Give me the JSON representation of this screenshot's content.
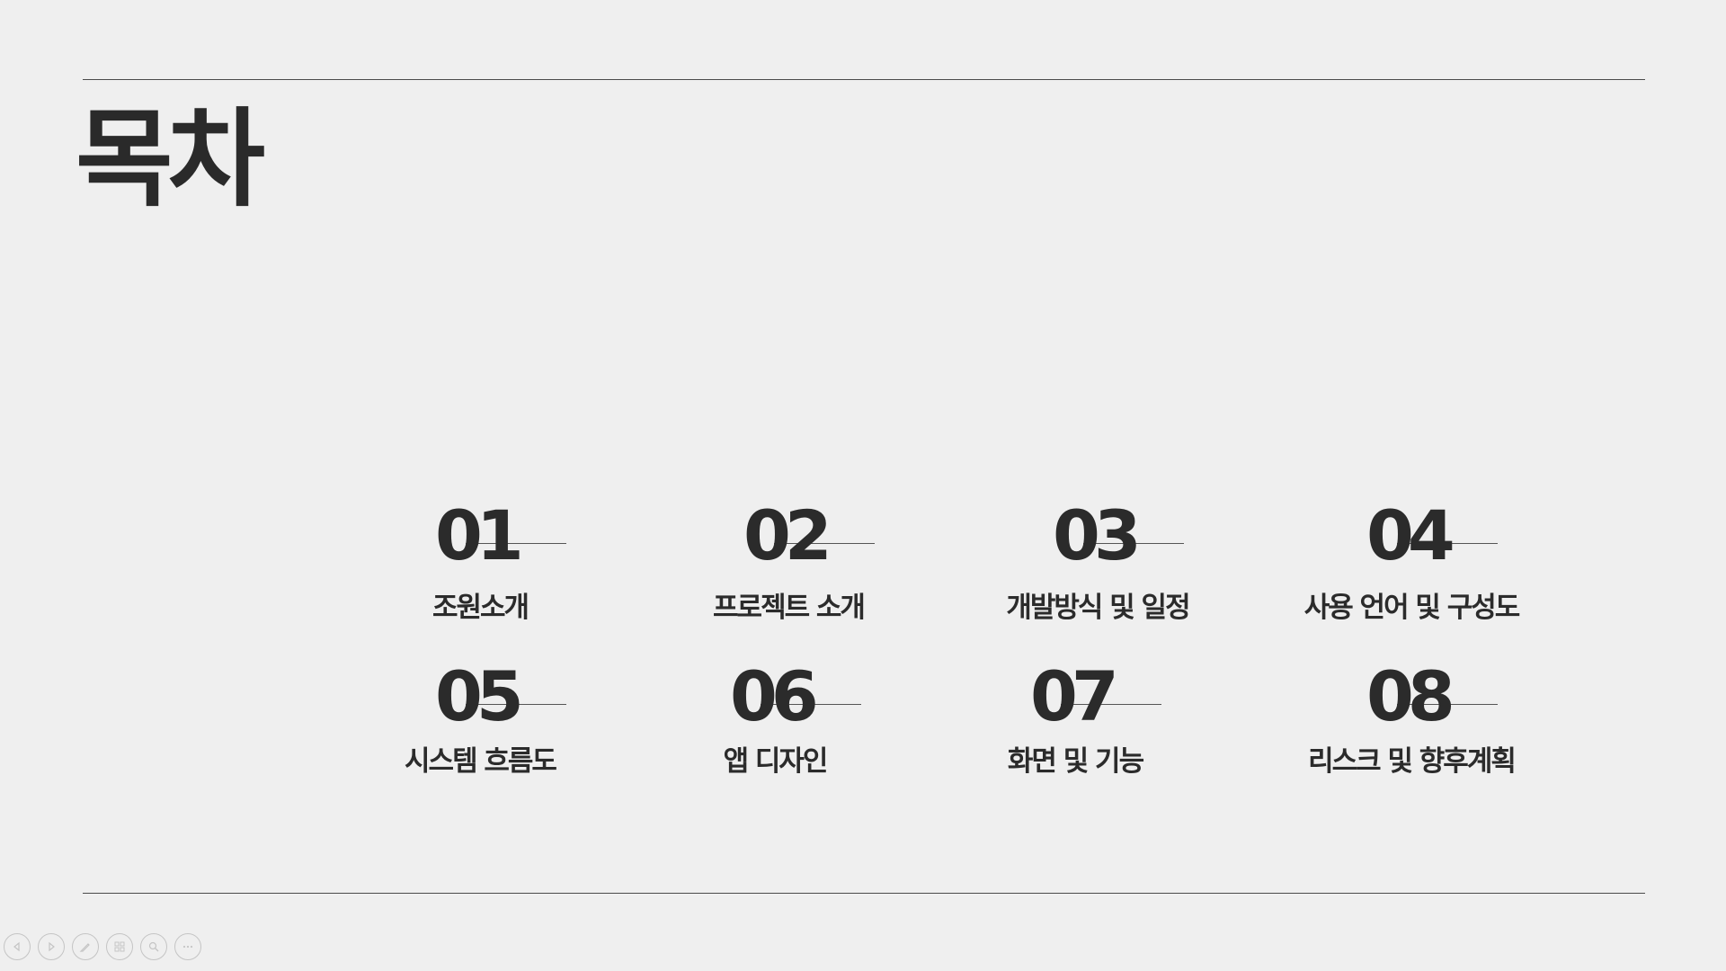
{
  "slide": {
    "title": "목차"
  },
  "toc": [
    {
      "number": "01",
      "label": "조원소개"
    },
    {
      "number": "02",
      "label": "프로젝트 소개"
    },
    {
      "number": "03",
      "label": "개발방식 및 일정"
    },
    {
      "number": "04",
      "label": "사용 언어 및 구성도"
    },
    {
      "number": "05",
      "label": "시스템 흐름도"
    },
    {
      "number": "06",
      "label": "앱 디자인"
    },
    {
      "number": "07",
      "label": "화면 및 기능"
    },
    {
      "number": "08",
      "label": "리스크 및 향후계획"
    }
  ],
  "controls": [
    {
      "icon": "previous-arrow-icon"
    },
    {
      "icon": "next-arrow-icon"
    },
    {
      "icon": "pen-icon"
    },
    {
      "icon": "slides-grid-icon"
    },
    {
      "icon": "zoom-icon"
    },
    {
      "icon": "more-options-icon"
    }
  ],
  "colors": {
    "background": "#efefef",
    "text": "#2b2b2b",
    "rule": "#4a4a4a"
  }
}
